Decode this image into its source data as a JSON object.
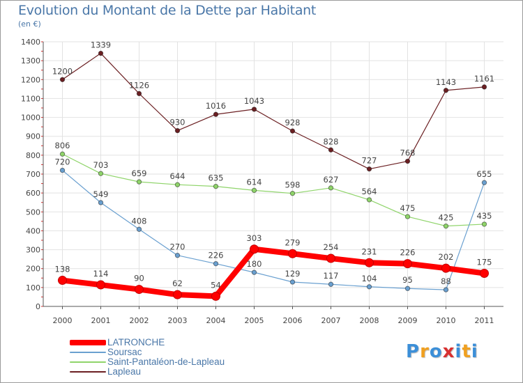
{
  "header": {
    "title": "Evolution du Montant de la Dette par Habitant",
    "subtitle": "(en €)"
  },
  "chart_data": {
    "type": "line",
    "x": [
      "2000",
      "2001",
      "2002",
      "2003",
      "2004",
      "2005",
      "2006",
      "2007",
      "2008",
      "2009",
      "2010",
      "2011"
    ],
    "ylim": [
      0,
      1400
    ],
    "yticks": [
      "0",
      "100",
      "200",
      "300",
      "400",
      "500",
      "600",
      "700",
      "800",
      "900",
      "1000",
      "1100",
      "1200",
      "1300",
      "1400"
    ],
    "grid": true,
    "legend_position": "bottom-left",
    "series": [
      {
        "name": "Lapleau",
        "color": "#6b1f22",
        "values": [
          1200,
          1339,
          1126,
          930,
          1016,
          1043,
          928,
          828,
          727,
          768,
          1143,
          1161
        ],
        "labels": [
          "1200",
          "1339",
          "1126",
          "930",
          "1016",
          "1043",
          "928",
          "828",
          "727",
          "768",
          "1143",
          "1161"
        ]
      },
      {
        "name": "Saint-Pantaléon-de-Lapleau",
        "color": "#8fd46a",
        "values": [
          806,
          703,
          659,
          644,
          635,
          614,
          598,
          627,
          564,
          475,
          425,
          435
        ],
        "labels": [
          "806",
          "703",
          "659",
          "644",
          "635",
          "614",
          "598",
          "627",
          "564",
          "475",
          "425",
          "435"
        ]
      },
      {
        "name": "Soursac",
        "color": "#6aa0d0",
        "values": [
          720,
          549,
          408,
          270,
          226,
          180,
          129,
          117,
          104,
          95,
          88,
          655
        ],
        "labels": [
          "720",
          "549",
          "408",
          "270",
          "226",
          "180",
          "129",
          "117",
          "104",
          "95",
          "88",
          "655"
        ]
      },
      {
        "name": "LATRONCHE",
        "color": "#ff0000",
        "values": [
          138,
          114,
          90,
          62,
          54,
          303,
          279,
          254,
          231,
          226,
          202,
          175
        ],
        "labels": [
          "138",
          "114",
          "90",
          "62",
          "54",
          "303",
          "279",
          "254",
          "231",
          "226",
          "202",
          "175"
        ]
      }
    ]
  },
  "legend": {
    "items": [
      {
        "label": "LATRONCHE",
        "color": "#ff0000"
      },
      {
        "label": "Soursac",
        "color": "#6aa0d0"
      },
      {
        "label": "Saint-Pantaléon-de-Lapleau",
        "color": "#8fd46a"
      },
      {
        "label": "Lapleau",
        "color": "#6b1f22"
      }
    ]
  },
  "logo": {
    "letters": [
      "P",
      "r",
      "o",
      "x",
      "i",
      "t",
      "i"
    ],
    "colors": [
      "#3c8fd8",
      "#f0a020",
      "#3c8fd8",
      "#d83030",
      "#3c8fd8",
      "#f0a020",
      "#3c8fd8"
    ]
  }
}
